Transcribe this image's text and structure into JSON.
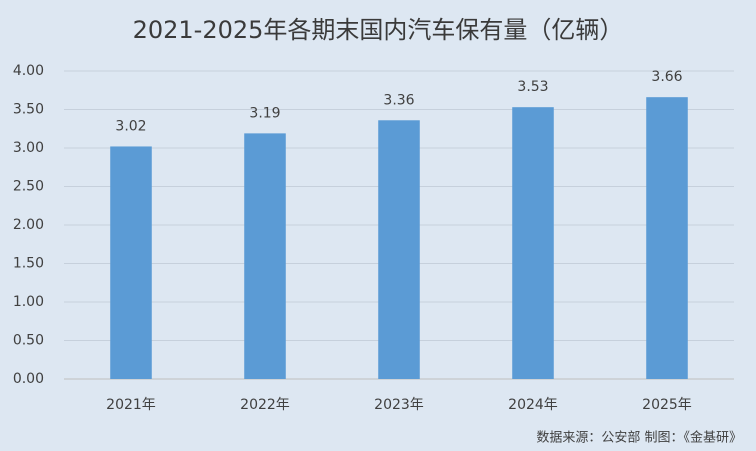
{
  "chart_data": {
    "type": "bar",
    "title": "2021-2025年各期末国内汽车保有量（亿辆）",
    "categories": [
      "2021年",
      "2022年",
      "2023年",
      "2024年",
      "2025年"
    ],
    "values": [
      3.02,
      3.19,
      3.36,
      3.53,
      3.66
    ],
    "color": "#5b9bd5",
    "ylim": [
      0,
      4
    ],
    "yticks": [
      {
        "value": 0,
        "label": "0.00"
      },
      {
        "value": 0.5,
        "label": "0.50"
      },
      {
        "value": 1,
        "label": "1.00"
      },
      {
        "value": 1.5,
        "label": "1.50"
      },
      {
        "value": 2,
        "label": "2.00"
      },
      {
        "value": 2.5,
        "label": "2.50"
      },
      {
        "value": 3,
        "label": "3.00"
      },
      {
        "value": 3.5,
        "label": "3.50"
      },
      {
        "value": 4,
        "label": "4.00"
      }
    ],
    "grid": true,
    "source": "数据来源：公安部  制图：《金基研》"
  }
}
